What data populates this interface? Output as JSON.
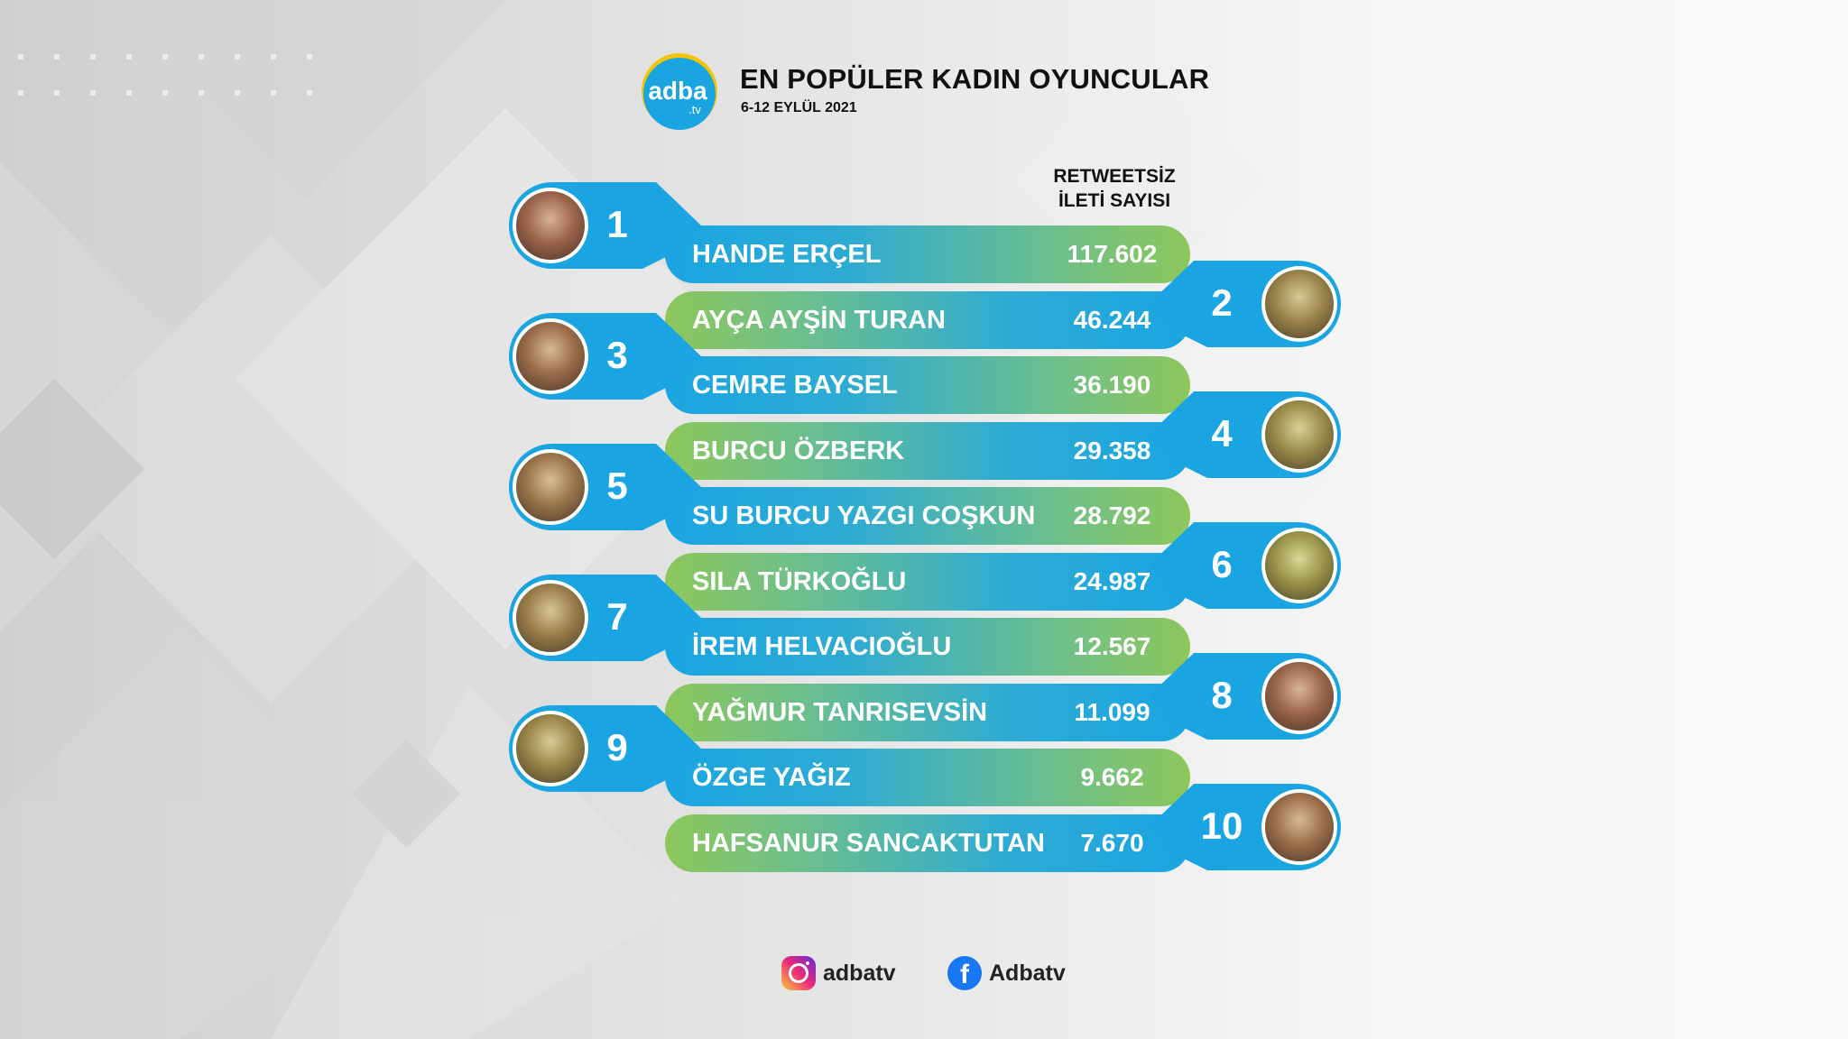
{
  "brand": {
    "logo_text": "adba",
    "logo_suffix": ".tv",
    "logo_color": "#1aa5e2",
    "logo_accent": "#f5c400"
  },
  "header": {
    "title": "EN POPÜLER KADIN OYUNCULAR",
    "subtitle": "6-12 EYLÜL 2021"
  },
  "column_header": {
    "line1": "RETWEETSİZ",
    "line2": "İLETİ SAYISI"
  },
  "colors": {
    "blue": "#1aa5e2",
    "green": "#8dc75b"
  },
  "rankings": [
    {
      "rank": "1",
      "name": "HANDE ERÇEL",
      "value": "117.602"
    },
    {
      "rank": "2",
      "name": "AYÇA AYŞİN TURAN",
      "value": "46.244"
    },
    {
      "rank": "3",
      "name": "CEMRE BAYSEL",
      "value": "36.190"
    },
    {
      "rank": "4",
      "name": "BURCU ÖZBERK",
      "value": "29.358"
    },
    {
      "rank": "5",
      "name": "SU BURCU YAZGI COŞKUN",
      "value": "28.792"
    },
    {
      "rank": "6",
      "name": "SILA TÜRKOĞLU",
      "value": "24.987"
    },
    {
      "rank": "7",
      "name": "İREM HELVACIOĞLU",
      "value": "12.567"
    },
    {
      "rank": "8",
      "name": "YAĞMUR TANRISEVSİN",
      "value": "11.099"
    },
    {
      "rank": "9",
      "name": "ÖZGE YAĞIZ",
      "value": "9.662"
    },
    {
      "rank": "10",
      "name": "HAFSANUR SANCAKTUTAN",
      "value": "7.670"
    }
  ],
  "footer": {
    "instagram": {
      "icon": "instagram-icon",
      "handle": "adbatv"
    },
    "facebook": {
      "icon": "facebook-icon",
      "handle": "Adbatv"
    }
  }
}
